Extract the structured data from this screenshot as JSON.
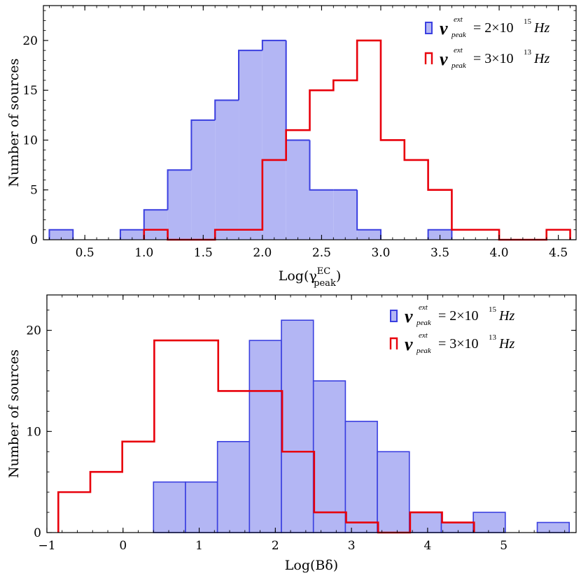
{
  "colors": {
    "blue_fill": "#b3b6f4",
    "blue_edge": "#3a3fe0",
    "red": "#e8000b"
  },
  "chart_data": [
    {
      "type": "histogram",
      "xlabel": "Log(γ",
      "xlabel_sup": "EC",
      "xlabel_sub": "peak",
      "xlabel_close": ")",
      "ylabel": "Number of sources",
      "xlim": [
        0.15,
        4.65
      ],
      "ylim": [
        0,
        23.5
      ],
      "xticks": [
        0.5,
        1.0,
        1.5,
        2.0,
        2.5,
        3.0,
        3.5,
        4.0,
        4.5
      ],
      "xtick_labels": [
        "0.5",
        "1.0",
        "1.5",
        "2.0",
        "2.5",
        "3.0",
        "3.5",
        "4.0",
        "4.5"
      ],
      "yticks": [
        0,
        5,
        10,
        15,
        20
      ],
      "ytick_labels": [
        "0",
        "5",
        "10",
        "15",
        "20"
      ],
      "legend_position": "top-right",
      "series": [
        {
          "name": "ν_peak^ext = 2×10^15 Hz",
          "legend": {
            "nu": "ν",
            "sup": "ext",
            "sub": "peak",
            "eq": "= 2×10",
            "exp": "15",
            "unit": "Hz"
          },
          "style": "filled",
          "edges": [
            0.2,
            0.4,
            0.6,
            0.8,
            1.0,
            1.2,
            1.4,
            1.6,
            1.8,
            2.0,
            2.2,
            2.4,
            2.6,
            2.8,
            3.0,
            3.2,
            3.4,
            3.6
          ],
          "values": [
            1,
            0,
            0,
            1,
            3,
            7,
            12,
            14,
            19,
            20,
            10,
            5,
            5,
            1,
            0,
            0,
            1
          ]
        },
        {
          "name": "ν_peak^ext = 3×10^13 Hz",
          "legend": {
            "nu": "ν",
            "sup": "ext",
            "sub": "peak",
            "eq": "= 3×10",
            "exp": "13",
            "unit": "Hz"
          },
          "style": "step",
          "edges": [
            1.0,
            1.2,
            1.4,
            1.6,
            1.8,
            2.0,
            2.2,
            2.4,
            2.6,
            2.8,
            3.0,
            3.2,
            3.4,
            3.6,
            3.8,
            4.0,
            4.2,
            4.4,
            4.6
          ],
          "values": [
            1,
            0,
            0,
            1,
            1,
            8,
            11,
            15,
            16,
            20,
            10,
            8,
            5,
            1,
            1,
            0,
            0,
            1
          ]
        }
      ]
    },
    {
      "type": "histogram",
      "xlabel": "Log(Bδ)",
      "ylabel": "Number of sources",
      "xlim": [
        -1.0,
        5.95
      ],
      "ylim": [
        0,
        23.5
      ],
      "xticks": [
        -1,
        0,
        1,
        2,
        3,
        4,
        5
      ],
      "xtick_labels": [
        "−1",
        "0",
        "1",
        "2",
        "3",
        "4",
        "5"
      ],
      "yticks": [
        0,
        10,
        20
      ],
      "ytick_labels": [
        "0",
        "10",
        "20"
      ],
      "legend_position": "top-right",
      "series": [
        {
          "name": "ν_peak^ext = 2×10^15 Hz",
          "legend": {
            "nu": "ν",
            "sup": "ext",
            "sub": "peak",
            "eq": "= 2×10",
            "exp": "15",
            "unit": "Hz"
          },
          "style": "bars",
          "edges": [
            0.4,
            0.82,
            1.24,
            1.66,
            2.08,
            2.5,
            2.92,
            3.34,
            3.76,
            4.18,
            4.6,
            5.02,
            5.44,
            5.86
          ],
          "values": [
            5,
            5,
            9,
            19,
            21,
            15,
            11,
            8,
            2,
            1,
            2,
            0,
            1
          ]
        },
        {
          "name": "ν_peak^ext = 3×10^13 Hz",
          "legend": {
            "nu": "ν",
            "sup": "ext",
            "sub": "peak",
            "eq": "= 3×10",
            "exp": "13",
            "unit": "Hz"
          },
          "style": "step",
          "edges": [
            -0.85,
            -0.43,
            -0.01,
            0.41,
            0.83,
            1.25,
            1.67,
            2.09,
            2.51,
            2.93,
            3.35,
            3.77,
            4.19,
            4.61
          ],
          "values": [
            4,
            6,
            9,
            19,
            19,
            14,
            14,
            8,
            2,
            1,
            0,
            2,
            1
          ]
        }
      ]
    }
  ]
}
